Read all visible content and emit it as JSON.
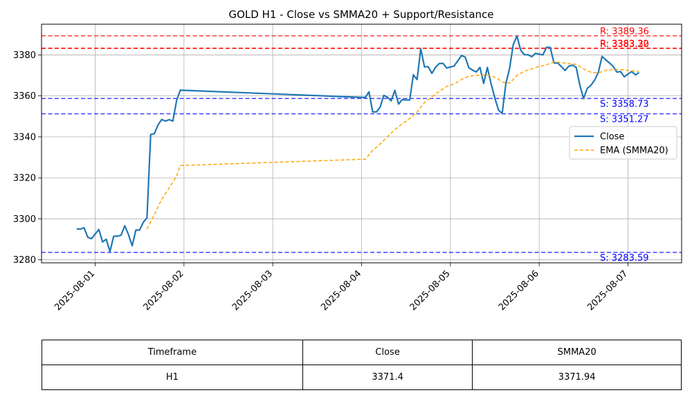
{
  "chart_data": {
    "type": "line",
    "title": "GOLD H1 - Close vs SMMA20 + Support/Resistance",
    "xlabel": "",
    "ylabel": "",
    "xlim": [
      "2025-07-31T09:30",
      "2025-08-07T14:30"
    ],
    "ylim": [
      3278.5,
      3395
    ],
    "grid": true,
    "legend_position": "center-right",
    "x_ticks": [
      "2025-08-01",
      "2025-08-02",
      "2025-08-03",
      "2025-08-04",
      "2025-08-05",
      "2025-08-06",
      "2025-08-07"
    ],
    "y_ticks": [
      3280,
      3300,
      3320,
      3340,
      3360,
      3380
    ],
    "series": [
      {
        "name": "Close",
        "color": "#1f77b4",
        "style": "solid",
        "points": [
          [
            "2025-07-31T19:00",
            3295.0
          ],
          [
            "2025-07-31T20:00",
            3295.0
          ],
          [
            "2025-07-31T21:00",
            3295.6
          ],
          [
            "2025-07-31T22:00",
            3291.0
          ],
          [
            "2025-07-31T23:00",
            3290.3
          ],
          [
            "2025-08-01T01:00",
            3294.8
          ],
          [
            "2025-08-01T02:00",
            3288.7
          ],
          [
            "2025-08-01T03:00",
            3290.0
          ],
          [
            "2025-08-01T04:00",
            3284.0
          ],
          [
            "2025-08-01T05:00",
            3291.5
          ],
          [
            "2025-08-01T06:00",
            3291.5
          ],
          [
            "2025-08-01T07:00",
            3292.0
          ],
          [
            "2025-08-01T08:00",
            3296.6
          ],
          [
            "2025-08-01T09:00",
            3292.3
          ],
          [
            "2025-08-01T10:00",
            3286.8
          ],
          [
            "2025-08-01T11:00",
            3294.5
          ],
          [
            "2025-08-01T12:00",
            3294.5
          ],
          [
            "2025-08-01T13:00",
            3298.3
          ],
          [
            "2025-08-01T14:00",
            3300.4
          ],
          [
            "2025-08-01T15:00",
            3341.1
          ],
          [
            "2025-08-01T16:00",
            3341.6
          ],
          [
            "2025-08-01T17:00",
            3345.9
          ],
          [
            "2025-08-01T18:00",
            3348.5
          ],
          [
            "2025-08-01T19:00",
            3347.7
          ],
          [
            "2025-08-01T20:00",
            3348.4
          ],
          [
            "2025-08-01T21:00",
            3347.7
          ],
          [
            "2025-08-01T22:00",
            3357.7
          ],
          [
            "2025-08-01T23:00",
            3362.8
          ],
          [
            "2025-08-04T01:00",
            3359.2
          ],
          [
            "2025-08-04T02:00",
            3362.0
          ],
          [
            "2025-08-04T03:00",
            3352.2
          ],
          [
            "2025-08-04T04:00",
            3352.2
          ],
          [
            "2025-08-04T05:00",
            3354.4
          ],
          [
            "2025-08-04T06:00",
            3360.3
          ],
          [
            "2025-08-04T07:00",
            3359.3
          ],
          [
            "2025-08-04T08:00",
            3357.6
          ],
          [
            "2025-08-04T09:00",
            3362.7
          ],
          [
            "2025-08-04T10:00",
            3356.0
          ],
          [
            "2025-08-04T11:00",
            3358.2
          ],
          [
            "2025-08-04T12:00",
            3358.0
          ],
          [
            "2025-08-04T13:00",
            3358.0
          ],
          [
            "2025-08-04T14:00",
            3370.3
          ],
          [
            "2025-08-04T15:00",
            3368.0
          ],
          [
            "2025-08-04T16:00",
            3383.0
          ],
          [
            "2025-08-04T17:00",
            3374.2
          ],
          [
            "2025-08-04T18:00",
            3374.3
          ],
          [
            "2025-08-04T19:00",
            3371.0
          ],
          [
            "2025-08-04T20:00",
            3374.0
          ],
          [
            "2025-08-04T21:00",
            3375.8
          ],
          [
            "2025-08-04T22:00",
            3375.9
          ],
          [
            "2025-08-04T23:00",
            3373.6
          ],
          [
            "2025-08-05T01:00",
            3374.6
          ],
          [
            "2025-08-05T02:00",
            3377.1
          ],
          [
            "2025-08-05T03:00",
            3379.7
          ],
          [
            "2025-08-05T04:00",
            3379.0
          ],
          [
            "2025-08-05T05:00",
            3373.7
          ],
          [
            "2025-08-05T06:00",
            3372.6
          ],
          [
            "2025-08-05T07:00",
            3371.7
          ],
          [
            "2025-08-05T08:00",
            3373.9
          ],
          [
            "2025-08-05T09:00",
            3366.1
          ],
          [
            "2025-08-05T10:00",
            3373.9
          ],
          [
            "2025-08-05T11:00",
            3365.9
          ],
          [
            "2025-08-05T12:00",
            3359.1
          ],
          [
            "2025-08-05T13:00",
            3353.1
          ],
          [
            "2025-08-05T14:00",
            3351.4
          ],
          [
            "2025-08-05T15:00",
            3366.1
          ],
          [
            "2025-08-05T16:00",
            3373.4
          ],
          [
            "2025-08-05T17:00",
            3385.1
          ],
          [
            "2025-08-05T18:00",
            3389.2
          ],
          [
            "2025-08-05T19:00",
            3382.3
          ],
          [
            "2025-08-05T20:00",
            3380.1
          ],
          [
            "2025-08-05T21:00",
            3380.1
          ],
          [
            "2025-08-05T22:00",
            3379.1
          ],
          [
            "2025-08-05T23:00",
            3380.8
          ],
          [
            "2025-08-06T01:00",
            3380.0
          ],
          [
            "2025-08-06T02:00",
            3383.8
          ],
          [
            "2025-08-06T03:00",
            3383.6
          ],
          [
            "2025-08-06T04:00",
            3376.1
          ],
          [
            "2025-08-06T05:00",
            3376.1
          ],
          [
            "2025-08-06T06:00",
            3374.3
          ],
          [
            "2025-08-06T07:00",
            3372.4
          ],
          [
            "2025-08-06T08:00",
            3374.5
          ],
          [
            "2025-08-06T09:00",
            3375.0
          ],
          [
            "2025-08-06T10:00",
            3373.9
          ],
          [
            "2025-08-06T11:00",
            3365.2
          ],
          [
            "2025-08-06T12:00",
            3358.7
          ],
          [
            "2025-08-06T13:00",
            3363.7
          ],
          [
            "2025-08-06T14:00",
            3365.2
          ],
          [
            "2025-08-06T15:00",
            3367.7
          ],
          [
            "2025-08-06T16:00",
            3371.6
          ],
          [
            "2025-08-06T17:00",
            3379.3
          ],
          [
            "2025-08-06T18:00",
            3377.6
          ],
          [
            "2025-08-06T19:00",
            3376.1
          ],
          [
            "2025-08-06T20:00",
            3374.4
          ],
          [
            "2025-08-06T21:00",
            3371.6
          ],
          [
            "2025-08-06T22:00",
            3371.9
          ],
          [
            "2025-08-06T23:00",
            3369.3
          ],
          [
            "2025-08-07T01:00",
            3371.9
          ],
          [
            "2025-08-07T02:00",
            3370.3
          ],
          [
            "2025-08-07T03:00",
            3371.4
          ]
        ]
      },
      {
        "name": "EMA (SMMA20)",
        "color": "#ffa500",
        "style": "dashed",
        "points": [
          [
            "2025-08-01T14:00",
            3295.0
          ],
          [
            "2025-08-01T16:00",
            3302.0
          ],
          [
            "2025-08-01T18:00",
            3309.6
          ],
          [
            "2025-08-01T20:00",
            3315.1
          ],
          [
            "2025-08-01T22:00",
            3320.8
          ],
          [
            "2025-08-01T23:00",
            3326.0
          ],
          [
            "2025-08-04T01:00",
            3329.1
          ],
          [
            "2025-08-04T03:00",
            3333.4
          ],
          [
            "2025-08-04T05:00",
            3336.5
          ],
          [
            "2025-08-04T07:00",
            3340.1
          ],
          [
            "2025-08-04T09:00",
            3343.5
          ],
          [
            "2025-08-04T11:00",
            3346.4
          ],
          [
            "2025-08-04T13:00",
            3349.0
          ],
          [
            "2025-08-04T15:00",
            3352.0
          ],
          [
            "2025-08-04T17:00",
            3356.8
          ],
          [
            "2025-08-04T19:00",
            3359.6
          ],
          [
            "2025-08-04T21:00",
            3362.2
          ],
          [
            "2025-08-04T23:00",
            3364.6
          ],
          [
            "2025-08-05T01:00",
            3365.8
          ],
          [
            "2025-08-05T03:00",
            3368.0
          ],
          [
            "2025-08-05T05:00",
            3369.6
          ],
          [
            "2025-08-05T07:00",
            3370.0
          ],
          [
            "2025-08-05T09:00",
            3370.2
          ],
          [
            "2025-08-05T11:00",
            3369.9
          ],
          [
            "2025-08-05T13:00",
            3368.2
          ],
          [
            "2025-08-05T14:00",
            3366.7
          ],
          [
            "2025-08-05T16:00",
            3366.2
          ],
          [
            "2025-08-05T18:00",
            3370.0
          ],
          [
            "2025-08-05T20:00",
            3372.0
          ],
          [
            "2025-08-05T22:00",
            3373.2
          ],
          [
            "2025-08-06T00:00",
            3374.4
          ],
          [
            "2025-08-06T02:00",
            3375.2
          ],
          [
            "2025-08-06T04:00",
            3376.6
          ],
          [
            "2025-08-06T06:00",
            3376.3
          ],
          [
            "2025-08-06T08:00",
            3375.7
          ],
          [
            "2025-08-06T10:00",
            3375.4
          ],
          [
            "2025-08-06T12:00",
            3373.2
          ],
          [
            "2025-08-06T14:00",
            3371.5
          ],
          [
            "2025-08-06T16:00",
            3371.2
          ],
          [
            "2025-08-06T18:00",
            3372.5
          ],
          [
            "2025-08-06T20:00",
            3372.9
          ],
          [
            "2025-08-06T22:00",
            3372.8
          ],
          [
            "2025-08-07T00:00",
            3372.4
          ],
          [
            "2025-08-07T03:00",
            3371.94
          ]
        ]
      }
    ],
    "levels": [
      {
        "kind": "resistance",
        "value": 3389.36,
        "label": "R: 3389.36",
        "color": "#ff0000"
      },
      {
        "kind": "resistance",
        "value": 3383.32,
        "label": "R: 3383.32",
        "color": "#ff0000"
      },
      {
        "kind": "resistance",
        "value": 3383.2,
        "label": "R: 3383.20",
        "color": "#ff0000"
      },
      {
        "kind": "support",
        "value": 3358.73,
        "label": "S: 3358.73",
        "color": "#0000ff"
      },
      {
        "kind": "support",
        "value": 3351.27,
        "label": "S: 3351.27",
        "color": "#0000ff"
      },
      {
        "kind": "support",
        "value": 3283.59,
        "label": "S: 3283.59",
        "color": "#0000ff"
      }
    ]
  },
  "table": {
    "headers": [
      "Timeframe",
      "Close",
      "SMMA20"
    ],
    "rows": [
      [
        "H1",
        "3371.4",
        "3371.94"
      ]
    ]
  }
}
